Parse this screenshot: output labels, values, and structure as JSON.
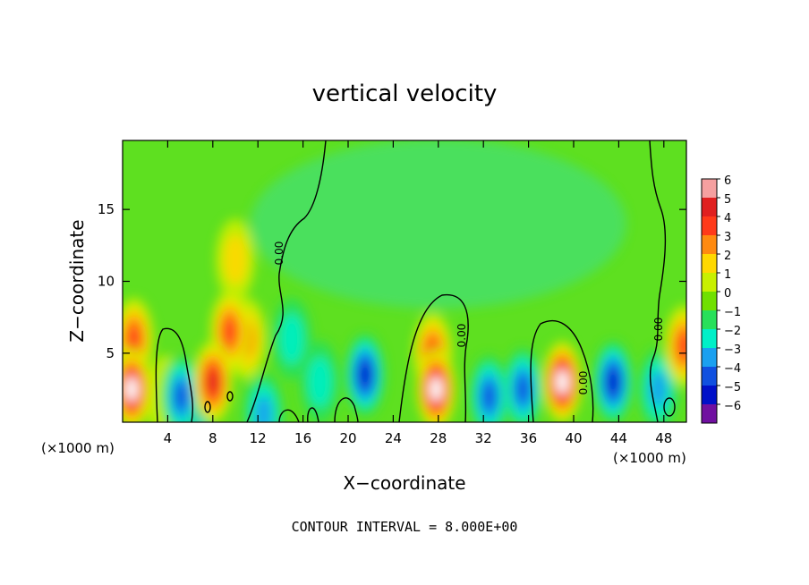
{
  "chart_data": {
    "type": "heatmap",
    "title": "vertical velocity",
    "xlabel": "X−coordinate",
    "ylabel": "Z−coordinate",
    "x_unit_left": "(×1000 m)",
    "x_unit_right": "(×1000 m)",
    "xlim": [
      0,
      50
    ],
    "ylim": [
      0.2,
      19.8
    ],
    "x_ticks": [
      4,
      8,
      12,
      16,
      20,
      24,
      28,
      32,
      36,
      40,
      44,
      48
    ],
    "y_ticks": [
      5,
      10,
      15
    ],
    "colorbar": {
      "levels": [
        6,
        5,
        4,
        3,
        2,
        1,
        0,
        -1,
        -2,
        -3,
        -4,
        -5,
        -6
      ],
      "labels": [
        "6",
        "5",
        "4",
        "3",
        "2",
        "1",
        "0",
        "−1",
        "−2",
        "−3",
        "−4",
        "−5",
        "−6"
      ],
      "colors": [
        "#f5a0a0",
        "#e02020",
        "#ff3a1a",
        "#ff8a10",
        "#ffd800",
        "#c8f000",
        "#70e000",
        "#28e05a",
        "#00f0c8",
        "#1aa0f0",
        "#1050e0",
        "#0010c8",
        "#7010a0"
      ]
    },
    "cells": [
      {
        "x": 0.8,
        "z": 2.5,
        "w": 5.8
      },
      {
        "x": 1.0,
        "z": 6.0,
        "w": 4.2
      },
      {
        "x": 3.8,
        "z": 2.0,
        "w": 0.8
      },
      {
        "x": 5.2,
        "z": 2.0,
        "w": -4.0
      },
      {
        "x": 6.3,
        "z": 1.5,
        "w": -3.5
      },
      {
        "x": 8.0,
        "z": 3.0,
        "w": 4.8
      },
      {
        "x": 9.5,
        "z": 6.5,
        "w": 3.5
      },
      {
        "x": 11.0,
        "z": 6.0,
        "w": 2.8
      },
      {
        "x": 10.0,
        "z": 11.5,
        "w": 1.5
      },
      {
        "x": 12.5,
        "z": 0.8,
        "w": -2.5
      },
      {
        "x": 15.0,
        "z": 6.0,
        "w": -1.5
      },
      {
        "x": 17.5,
        "z": 3.0,
        "w": -2.0
      },
      {
        "x": 21.5,
        "z": 3.5,
        "w": -4.5
      },
      {
        "x": 27.8,
        "z": 2.5,
        "w": 5.8
      },
      {
        "x": 27.5,
        "z": 5.0,
        "w": 3.5
      },
      {
        "x": 32.5,
        "z": 2.0,
        "w": -4.0
      },
      {
        "x": 35.5,
        "z": 2.5,
        "w": -3.5
      },
      {
        "x": 39.0,
        "z": 3.0,
        "w": 5.5
      },
      {
        "x": 43.5,
        "z": 3.0,
        "w": -5.0
      },
      {
        "x": 47.5,
        "z": 2.5,
        "w": -2.5
      },
      {
        "x": 49.8,
        "z": 5.5,
        "w": 3.5
      }
    ],
    "contour_label": "0.00",
    "grid": false
  },
  "footer": {
    "contour_interval": "CONTOUR INTERVAL = 8.000E+00"
  }
}
